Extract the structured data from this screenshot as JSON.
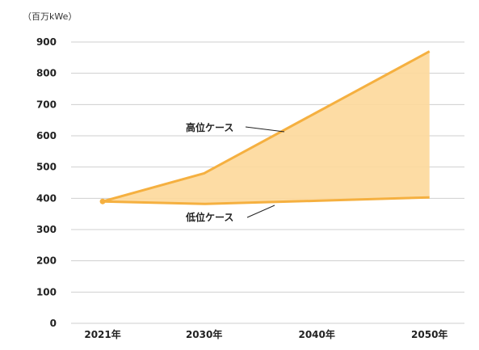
{
  "chart_data": {
    "type": "area",
    "unit_label": "（百万kWe）",
    "categories": [
      "2021年",
      "2030年",
      "2040年",
      "2050年"
    ],
    "x": [
      2021,
      2030,
      2040,
      2050
    ],
    "series": [
      {
        "name": "高位ケース",
        "values": [
          390,
          480,
          675,
          870
        ]
      },
      {
        "name": "低位ケース",
        "values": [
          390,
          382,
          392,
          403
        ]
      }
    ],
    "ylim": [
      0,
      900
    ],
    "yticks": [
      0,
      100,
      200,
      300,
      400,
      500,
      600,
      700,
      800,
      900
    ],
    "grid": true,
    "colors": {
      "line": "#f5b040",
      "fill": "#fdd89a",
      "grid": "#cfcfcf",
      "leader": "#222222"
    },
    "annotations": [
      {
        "text": "高位ケース",
        "series": 0
      },
      {
        "text": "低位ケース",
        "series": 1
      }
    ]
  }
}
